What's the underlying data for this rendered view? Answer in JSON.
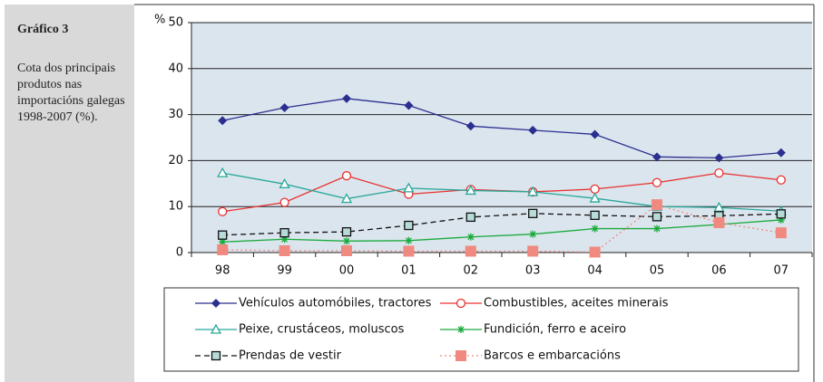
{
  "side": {
    "title": "Gráfico 3",
    "description": "Cota dos principais produtos nas importacións galegas 1998-2007 (%)."
  },
  "chart_data": {
    "type": "line",
    "y_label": "%",
    "categories": [
      "98",
      "99",
      "00",
      "01",
      "02",
      "03",
      "04",
      "05",
      "06",
      "07"
    ],
    "ylim": [
      0,
      50
    ],
    "yticks": [
      0,
      10,
      20,
      30,
      40,
      50
    ],
    "grid": true,
    "series": [
      {
        "name": "Vehículos automóbiles, tractores",
        "color": "#2b2f8f",
        "marker": "diamond",
        "dash": "solid",
        "values": [
          28.7,
          31.5,
          33.5,
          32,
          27.5,
          26.6,
          25.7,
          20.8,
          20.6,
          21.7
        ]
      },
      {
        "name": "Combustibles, aceites minerais",
        "color": "#e8312f",
        "marker": "circle",
        "dash": "solid",
        "values": [
          8.9,
          10.9,
          16.7,
          12.7,
          13.7,
          13.2,
          13.8,
          15.2,
          17.3,
          15.8
        ]
      },
      {
        "name": "Peixe, crustáceos, moluscos",
        "color": "#2aa89a",
        "marker": "triangle",
        "dash": "solid",
        "values": [
          17.3,
          14.9,
          11.7,
          14,
          13.5,
          13.2,
          11.8,
          10,
          9.8,
          9
        ]
      },
      {
        "name": "Fundición, ferro e aceiro",
        "color": "#1aaa3c",
        "marker": "star",
        "dash": "solid",
        "values": [
          2.3,
          2.9,
          2.5,
          2.6,
          3.4,
          4,
          5.2,
          5.2,
          6.1,
          7.1
        ]
      },
      {
        "name": "Prendas de vestir",
        "color": "#111111",
        "marker": "square",
        "dash": "dashed",
        "values": [
          3.8,
          4.3,
          4.5,
          5.9,
          7.7,
          8.5,
          8.1,
          7.8,
          8,
          8.4
        ]
      },
      {
        "name": "Barcos e embarcacións",
        "color": "#f08a80",
        "marker": "bigsquare",
        "dash": "dotted",
        "values": [
          0.6,
          0.4,
          0.4,
          0.3,
          0.3,
          0.3,
          0.1,
          10.4,
          6.5,
          4.3
        ]
      }
    ]
  }
}
